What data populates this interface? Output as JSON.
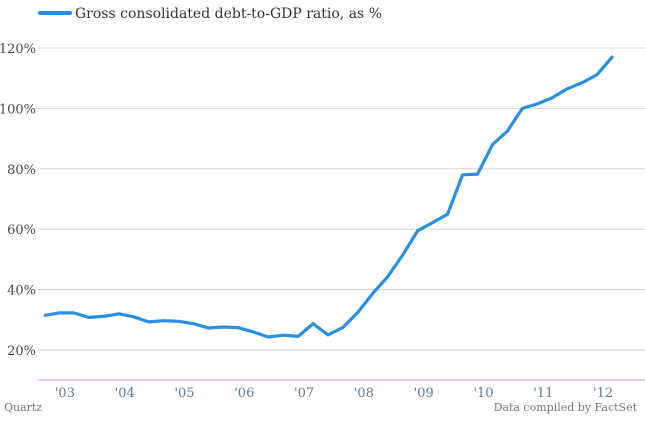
{
  "chart_data": {
    "type": "line",
    "title": "",
    "xlabel": "",
    "ylabel": "",
    "y_unit": "%",
    "ylim": [
      10,
      124
    ],
    "xlim": [
      2002.55,
      2012.75
    ],
    "yticks": [
      20,
      40,
      60,
      80,
      100,
      120
    ],
    "ytick_labels": [
      "20%",
      "40%",
      "60%",
      "80%",
      "100%",
      "120%"
    ],
    "xtick_positions": [
      2003,
      2004,
      2005,
      2006,
      2007,
      2008,
      2009,
      2010,
      2011,
      2012
    ],
    "xtick_labels": [
      "'03",
      "'04",
      "'05",
      "'06",
      "'07",
      "'08",
      "'09",
      "'10",
      "'11",
      "'12"
    ],
    "grid": "horizontal",
    "legend": "top-left",
    "series": [
      {
        "name": "Gross consolidated debt-to-GDP ratio, as %",
        "color": "#2a8ee3",
        "x": [
          2002.67,
          2002.9,
          2003.15,
          2003.4,
          2003.67,
          2003.9,
          2004.15,
          2004.4,
          2004.65,
          2004.9,
          2005.15,
          2005.4,
          2005.65,
          2005.9,
          2006.15,
          2006.4,
          2006.65,
          2006.9,
          2007.15,
          2007.4,
          2007.65,
          2007.9,
          2008.15,
          2008.4,
          2008.65,
          2008.9,
          2009.15,
          2009.4,
          2009.65,
          2009.9,
          2010.15,
          2010.4,
          2010.65,
          2010.9,
          2011.15,
          2011.4,
          2011.65,
          2011.9,
          2012.15
        ],
        "values": [
          31.5,
          32.3,
          32.3,
          30.8,
          31.2,
          32.0,
          31.0,
          29.3,
          29.7,
          29.5,
          28.7,
          27.3,
          27.6,
          27.4,
          26.0,
          24.3,
          24.9,
          24.5,
          28.7,
          25.0,
          27.5,
          32.5,
          38.8,
          44.3,
          51.5,
          59.5,
          62.2,
          65.0,
          78.0,
          78.2,
          88.0,
          92.5,
          100.0,
          101.5,
          103.5,
          106.5,
          108.5,
          111.2,
          117.0
        ]
      }
    ]
  },
  "footer": {
    "left": "Quartz",
    "right": "Data compiled by FactSet"
  }
}
